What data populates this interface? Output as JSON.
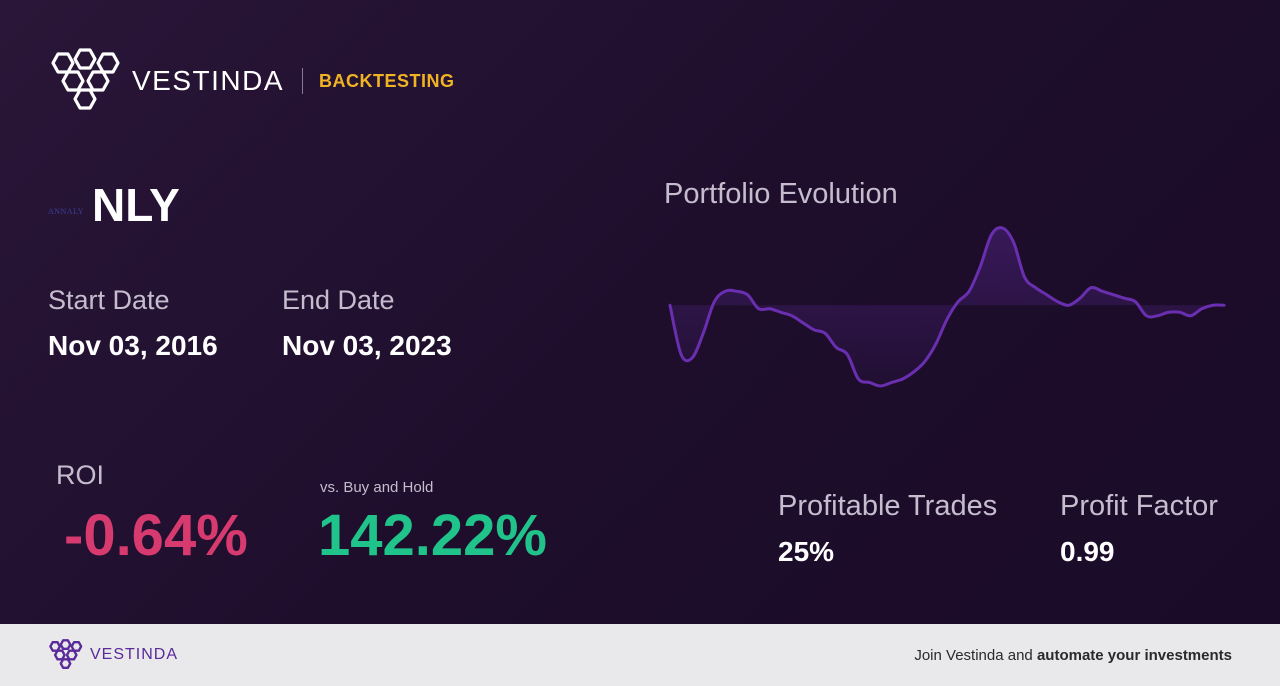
{
  "header": {
    "brand": "VESTINDA",
    "product": "BACKTESTING"
  },
  "asset": {
    "logo_text": "ANNALY",
    "ticker": "NLY"
  },
  "dates": {
    "start_label": "Start Date",
    "start_value": "Nov 03, 2016",
    "end_label": "End Date",
    "end_value": "Nov 03, 2023"
  },
  "roi": {
    "label": "ROI",
    "value": "-0.64%",
    "bah_label": "vs. Buy and Hold",
    "bah_value": "142.22%"
  },
  "chart": {
    "title": "Portfolio Evolution"
  },
  "chart_data": {
    "type": "line",
    "x": [
      0,
      1,
      2,
      3,
      4,
      5,
      6,
      7,
      8,
      9,
      10,
      11,
      12,
      13,
      14,
      15,
      16,
      17,
      18,
      19,
      20,
      21,
      22,
      23,
      24,
      25,
      26,
      27,
      28,
      29,
      30,
      31,
      32,
      33,
      34,
      35,
      36,
      37,
      38,
      39,
      40,
      41,
      42,
      43,
      44,
      45,
      46,
      47,
      48,
      49,
      50
    ],
    "values": [
      100,
      86,
      85,
      92,
      101,
      104,
      104,
      103,
      99,
      99,
      98,
      97,
      95,
      93,
      92,
      88,
      86,
      79,
      78,
      77,
      78,
      79,
      81,
      84,
      89,
      96,
      101,
      104,
      111,
      120,
      122,
      118,
      108,
      105,
      103,
      101,
      100,
      102,
      105,
      104,
      103,
      102,
      101,
      97,
      97,
      98,
      98,
      97,
      99,
      100,
      100
    ],
    "baseline": 100,
    "grid": false,
    "legend": false,
    "line_color": "#6a2fb0"
  },
  "stats": {
    "profitable_label": "Profitable Trades",
    "profitable_value": "25%",
    "factor_label": "Profit Factor",
    "factor_value": "0.99"
  },
  "footer": {
    "brand": "VESTINDA",
    "cta_prefix": "Join Vestinda and ",
    "cta_bold": "automate your investments"
  },
  "colors": {
    "accent": "#f0b323",
    "negative": "#d63a6e",
    "positive": "#20c48a",
    "brand_purple": "#5a2a9a"
  }
}
